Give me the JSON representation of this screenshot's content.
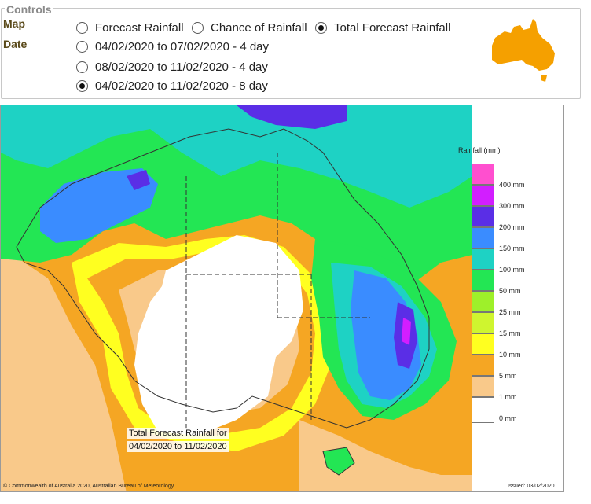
{
  "controls": {
    "legend": "Controls",
    "map_label": "Map",
    "date_label": "Date",
    "map_options": [
      {
        "label": "Forecast Rainfall",
        "selected": false
      },
      {
        "label": "Chance of Rainfall",
        "selected": false
      },
      {
        "label": "Total Forecast Rainfall",
        "selected": true
      }
    ],
    "date_options": [
      {
        "label": "04/02/2020 to 07/02/2020 - 4 day",
        "selected": false
      },
      {
        "label": "08/02/2020 to 11/02/2020 - 4 day",
        "selected": false
      },
      {
        "label": "04/02/2020 to 11/02/2020 - 8 day",
        "selected": true
      }
    ]
  },
  "map": {
    "legend_title": "Rainfall (mm)",
    "legend": [
      {
        "label": "400 mm",
        "color": "#ff4fcf"
      },
      {
        "label": "300 mm",
        "color": "#d21eff"
      },
      {
        "label": "200 mm",
        "color": "#5a2ee6"
      },
      {
        "label": "150 mm",
        "color": "#3a8cff"
      },
      {
        "label": "100 mm",
        "color": "#1ed2c4"
      },
      {
        "label": "50 mm",
        "color": "#23e654"
      },
      {
        "label": "25 mm",
        "color": "#9ef02a"
      },
      {
        "label": "15 mm",
        "color": "#cff52f"
      },
      {
        "label": "10 mm",
        "color": "#ffff20"
      },
      {
        "label": "5 mm",
        "color": "#f5a623"
      },
      {
        "label": "1 mm",
        "color": "#f9c98a"
      },
      {
        "label": "0 mm",
        "color": "#ffffff"
      }
    ],
    "caption_line1": "Total Forecast Rainfall for",
    "caption_line2": "04/02/2020 to 11/02/2020",
    "copyright": "© Commonwealth of Australia 2020, Australian Bureau of Meteorology",
    "issued": "Issued: 03/02/2020"
  },
  "colors": {
    "thumbnail_map": "#f5a000",
    "ocean_orange": "#f5a623"
  }
}
